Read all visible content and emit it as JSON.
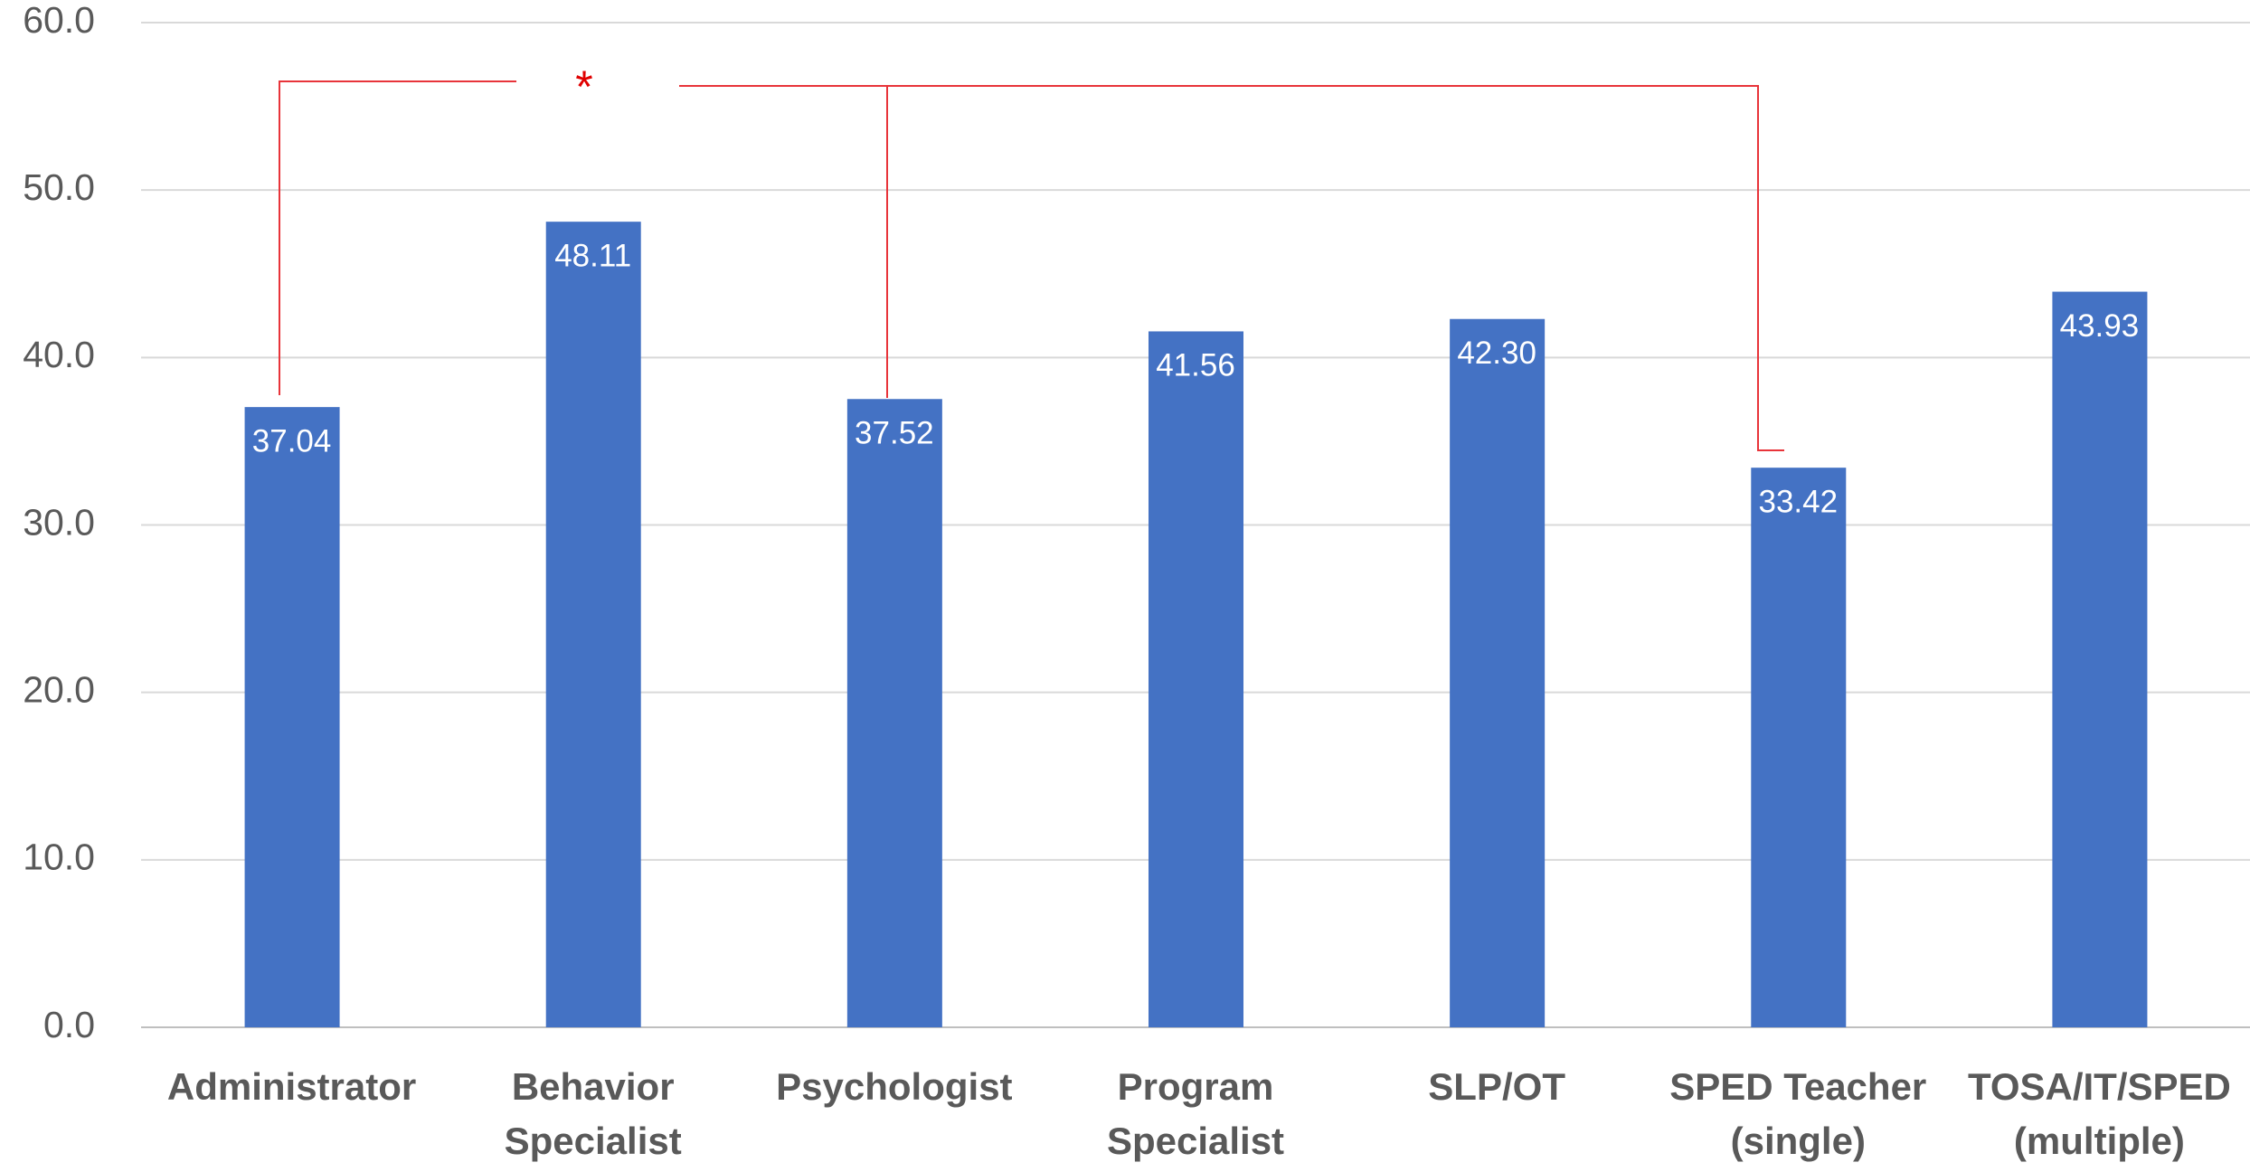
{
  "chart_data": {
    "type": "bar",
    "categories": [
      "Administrator",
      "Behavior Specialist",
      "Psychologist",
      "Program Specialist",
      "SLP/OT",
      "SPED Teacher (single)",
      "TOSA/IT/SPED (multiple)"
    ],
    "values": [
      37.04,
      48.11,
      37.52,
      41.56,
      42.3,
      33.42,
      43.93
    ],
    "value_labels": [
      "37.04",
      "48.11",
      "37.52",
      "41.56",
      "42.30",
      "33.42",
      "43.93"
    ],
    "color": "#4472c4",
    "ylim": [
      0,
      60
    ],
    "yticks": [
      {
        "value": 0,
        "label": "0.0"
      },
      {
        "value": 10,
        "label": "10.0"
      },
      {
        "value": 20,
        "label": "20.0"
      },
      {
        "value": 30,
        "label": "30.0"
      },
      {
        "value": 40,
        "label": "40.0"
      },
      {
        "value": 50,
        "label": "50.0"
      },
      {
        "value": 60,
        "label": "60.0"
      }
    ],
    "grid": true,
    "annotation": "*"
  }
}
